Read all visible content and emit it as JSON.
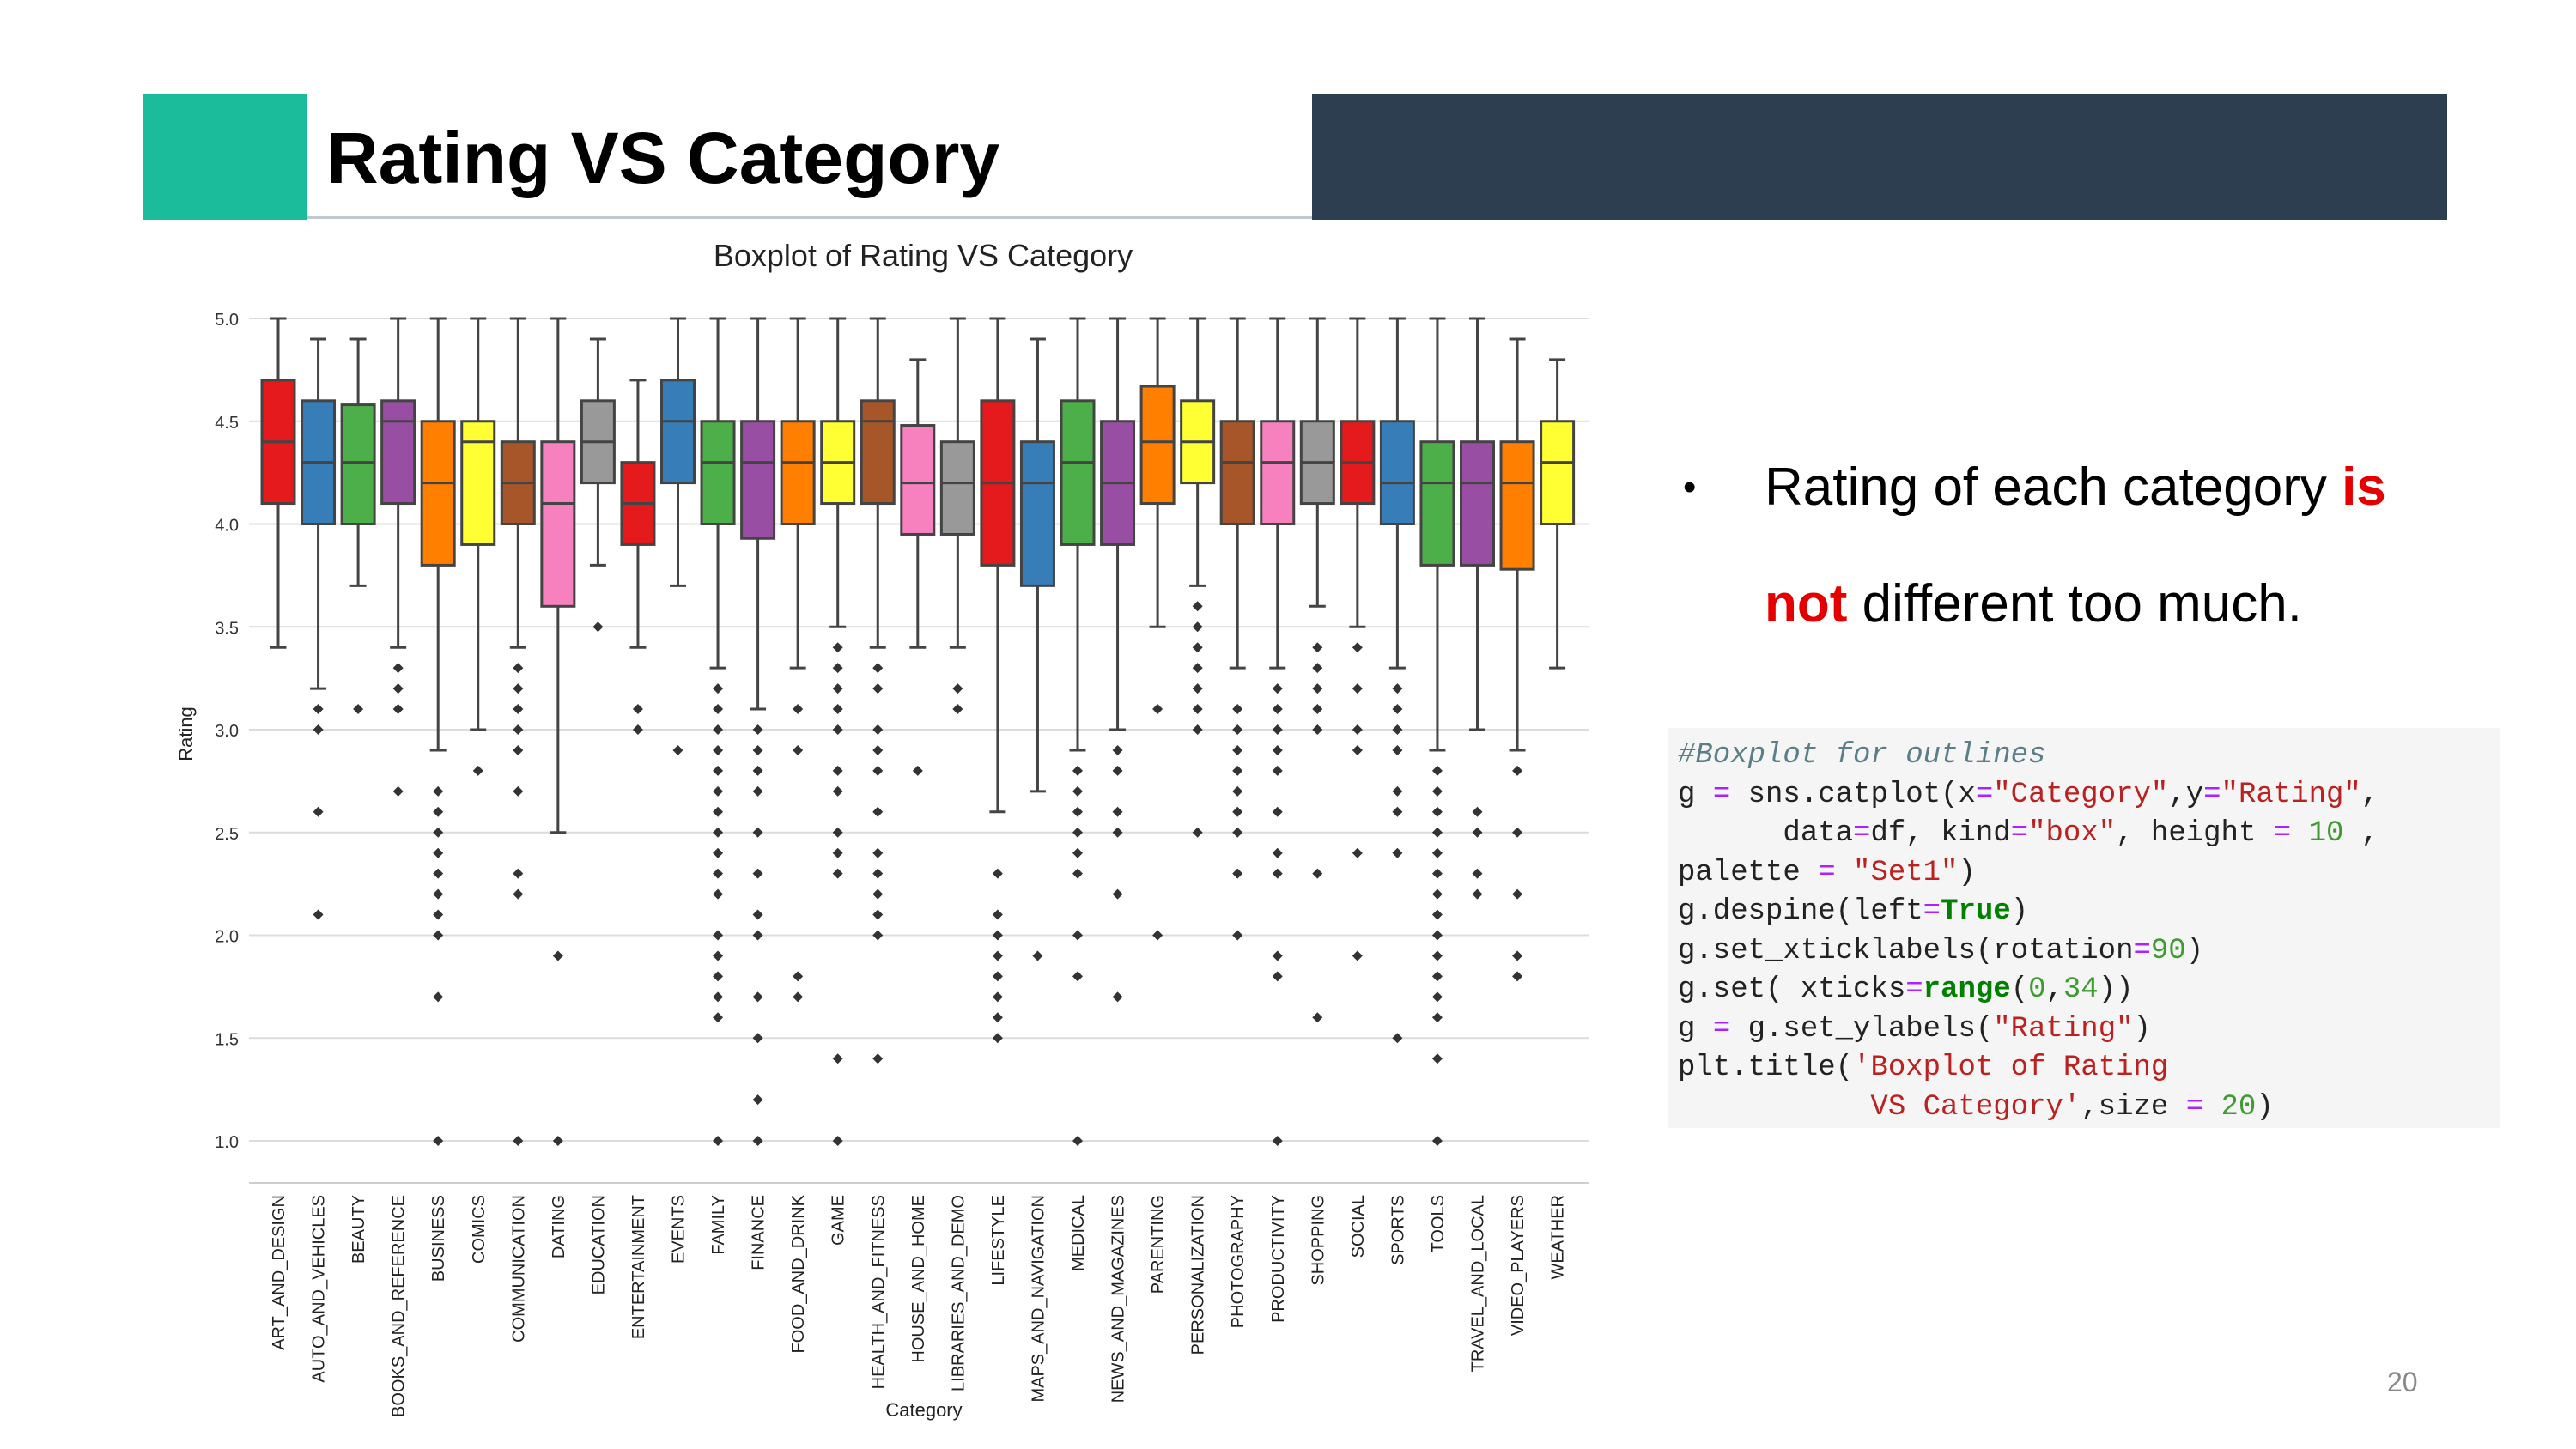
{
  "slide": {
    "title": "Rating VS Category",
    "page_number": "20",
    "accent_color": "#1abc9c",
    "bar_color": "#2d3e50"
  },
  "bullet": {
    "part1": "Rating of each category ",
    "hl1": "is",
    "hl2": "not",
    "part2": " different too much.",
    "highlight_color": "#e50000"
  },
  "code": {
    "lines": [
      [
        [
          "c-com",
          "#Boxplot for outlines"
        ]
      ],
      [
        [
          "",
          "g "
        ],
        [
          "c-op",
          "="
        ],
        [
          "",
          " sns.catplot(x"
        ],
        [
          "c-op",
          "="
        ],
        [
          "c-str",
          "\"Category\""
        ],
        [
          "",
          ",y"
        ],
        [
          "c-op",
          "="
        ],
        [
          "c-str",
          "\"Rating\""
        ],
        [
          "",
          ","
        ]
      ],
      [
        [
          "",
          "      data"
        ],
        [
          "c-op",
          "="
        ],
        [
          "",
          "df, kind"
        ],
        [
          "c-op",
          "="
        ],
        [
          "c-str",
          "\"box\""
        ],
        [
          "",
          ", height "
        ],
        [
          "c-op",
          "="
        ],
        [
          "c-num",
          " 10"
        ],
        [
          "",
          " ,"
        ]
      ],
      [
        [
          "",
          "palette "
        ],
        [
          "c-op",
          "="
        ],
        [
          "c-str",
          " \"Set1\""
        ],
        [
          "",
          ")"
        ]
      ],
      [
        [
          "",
          "g.despine(left"
        ],
        [
          "c-op",
          "="
        ],
        [
          "c-kw",
          "True"
        ],
        [
          "",
          ")"
        ]
      ],
      [
        [
          "",
          "g.set_xticklabels(rotation"
        ],
        [
          "c-op",
          "="
        ],
        [
          "c-num",
          "90"
        ],
        [
          "",
          ")"
        ]
      ],
      [
        [
          "",
          "g.set( xticks"
        ],
        [
          "c-op",
          "="
        ],
        [
          "c-kw",
          "range"
        ],
        [
          "",
          "("
        ],
        [
          "c-num",
          "0"
        ],
        [
          "",
          ","
        ],
        [
          "c-num",
          "34"
        ],
        [
          "",
          "))"
        ]
      ],
      [
        [
          "",
          "g "
        ],
        [
          "c-op",
          "="
        ],
        [
          "",
          " g.set_ylabels("
        ],
        [
          "c-str",
          "\"Rating\""
        ],
        [
          "",
          ")"
        ]
      ],
      [
        [
          "",
          "plt.title("
        ],
        [
          "c-str",
          "'Boxplot of Rating"
        ]
      ],
      [
        [
          "c-str",
          "           VS Category'"
        ],
        [
          "",
          ",size "
        ],
        [
          "c-op",
          "="
        ],
        [
          "c-num",
          " 20"
        ],
        [
          "",
          ")"
        ]
      ]
    ]
  },
  "chart_data": {
    "type": "box",
    "title": "Boxplot of Rating VS Category",
    "xlabel": "Category",
    "ylabel": "Rating",
    "ylim": [
      0.85,
      5.0
    ],
    "yticks": [
      "1.0",
      "1.5",
      "2.0",
      "2.5",
      "3.0",
      "3.5",
      "4.0",
      "4.5",
      "5.0"
    ],
    "grid": true,
    "palette": [
      "#e41a1c",
      "#377eb8",
      "#4daf4a",
      "#984ea3",
      "#ff7f00",
      "#ffff33",
      "#a65628",
      "#f781bf",
      "#999999"
    ],
    "categories": [
      "ART_AND_DESIGN",
      "AUTO_AND_VEHICLES",
      "BEAUTY",
      "BOOKS_AND_REFERENCE",
      "BUSINESS",
      "COMICS",
      "COMMUNICATION",
      "DATING",
      "EDUCATION",
      "ENTERTAINMENT",
      "EVENTS",
      "FAMILY",
      "FINANCE",
      "FOOD_AND_DRINK",
      "GAME",
      "HEALTH_AND_FITNESS",
      "HOUSE_AND_HOME",
      "LIBRARIES_AND_DEMO",
      "LIFESTYLE",
      "MAPS_AND_NAVIGATION",
      "MEDICAL",
      "NEWS_AND_MAGAZINES",
      "PARENTING",
      "PERSONALIZATION",
      "PHOTOGRAPHY",
      "PRODUCTIVITY",
      "SHOPPING",
      "SOCIAL",
      "SPORTS",
      "TOOLS",
      "TRAVEL_AND_LOCAL",
      "VIDEO_PLAYERS",
      "WEATHER"
    ],
    "boxes": [
      {
        "wl": 3.4,
        "q1": 4.1,
        "med": 4.4,
        "q3": 4.7,
        "wh": 5.0,
        "fliers": []
      },
      {
        "wl": 3.2,
        "q1": 4.0,
        "med": 4.3,
        "q3": 4.6,
        "wh": 4.9,
        "fliers": [
          3.1,
          3.0,
          2.6,
          2.1
        ]
      },
      {
        "wl": 3.7,
        "q1": 4.0,
        "med": 4.3,
        "q3": 4.58,
        "wh": 4.9,
        "fliers": [
          3.1
        ]
      },
      {
        "wl": 3.4,
        "q1": 4.1,
        "med": 4.5,
        "q3": 4.6,
        "wh": 5.0,
        "fliers": [
          3.3,
          3.2,
          3.1,
          2.7
        ]
      },
      {
        "wl": 2.9,
        "q1": 3.8,
        "med": 4.2,
        "q3": 4.5,
        "wh": 5.0,
        "fliers": [
          2.7,
          2.6,
          2.5,
          2.4,
          2.3,
          2.2,
          2.1,
          2.0,
          1.7,
          1.0
        ]
      },
      {
        "wl": 3.0,
        "q1": 3.9,
        "med": 4.4,
        "q3": 4.5,
        "wh": 5.0,
        "fliers": [
          2.8
        ]
      },
      {
        "wl": 3.4,
        "q1": 4.0,
        "med": 4.2,
        "q3": 4.4,
        "wh": 5.0,
        "fliers": [
          3.3,
          3.2,
          3.1,
          3.0,
          2.9,
          2.7,
          2.3,
          2.2,
          1.0
        ]
      },
      {
        "wl": 2.5,
        "q1": 3.6,
        "med": 4.1,
        "q3": 4.4,
        "wh": 5.0,
        "fliers": [
          1.9,
          1.0
        ]
      },
      {
        "wl": 3.8,
        "q1": 4.2,
        "med": 4.4,
        "q3": 4.6,
        "wh": 4.9,
        "fliers": [
          3.5
        ]
      },
      {
        "wl": 3.4,
        "q1": 3.9,
        "med": 4.1,
        "q3": 4.3,
        "wh": 4.7,
        "fliers": [
          3.1,
          3.0
        ]
      },
      {
        "wl": 3.7,
        "q1": 4.2,
        "med": 4.5,
        "q3": 4.7,
        "wh": 5.0,
        "fliers": [
          2.9
        ]
      },
      {
        "wl": 3.3,
        "q1": 4.0,
        "med": 4.3,
        "q3": 4.5,
        "wh": 5.0,
        "fliers": [
          3.2,
          3.1,
          3.0,
          2.9,
          2.8,
          2.7,
          2.6,
          2.5,
          2.4,
          2.3,
          2.2,
          2.0,
          1.9,
          1.8,
          1.7,
          1.6,
          1.0
        ]
      },
      {
        "wl": 3.1,
        "q1": 3.93,
        "med": 4.3,
        "q3": 4.5,
        "wh": 5.0,
        "fliers": [
          3.0,
          2.9,
          2.8,
          2.7,
          2.5,
          2.3,
          2.1,
          2.0,
          1.7,
          1.5,
          1.2,
          1.0
        ]
      },
      {
        "wl": 3.3,
        "q1": 4.0,
        "med": 4.3,
        "q3": 4.5,
        "wh": 5.0,
        "fliers": [
          3.1,
          2.9,
          1.8,
          1.7
        ]
      },
      {
        "wl": 3.5,
        "q1": 4.1,
        "med": 4.3,
        "q3": 4.5,
        "wh": 5.0,
        "fliers": [
          3.4,
          3.3,
          3.2,
          3.1,
          3.0,
          2.8,
          2.7,
          2.5,
          2.4,
          2.3,
          1.4,
          1.0
        ]
      },
      {
        "wl": 3.4,
        "q1": 4.1,
        "med": 4.5,
        "q3": 4.6,
        "wh": 5.0,
        "fliers": [
          3.3,
          3.2,
          3.0,
          2.9,
          2.8,
          2.6,
          2.4,
          2.3,
          2.2,
          2.1,
          2.0,
          1.4
        ]
      },
      {
        "wl": 3.4,
        "q1": 3.95,
        "med": 4.2,
        "q3": 4.48,
        "wh": 4.8,
        "fliers": [
          2.8
        ]
      },
      {
        "wl": 3.4,
        "q1": 3.95,
        "med": 4.2,
        "q3": 4.4,
        "wh": 5.0,
        "fliers": [
          3.2,
          3.1
        ]
      },
      {
        "wl": 2.6,
        "q1": 3.8,
        "med": 4.2,
        "q3": 4.6,
        "wh": 5.0,
        "fliers": [
          2.3,
          2.1,
          2.0,
          1.9,
          1.8,
          1.7,
          1.6,
          1.5
        ]
      },
      {
        "wl": 2.7,
        "q1": 3.7,
        "med": 4.2,
        "q3": 4.4,
        "wh": 4.9,
        "fliers": [
          1.9
        ]
      },
      {
        "wl": 2.9,
        "q1": 3.9,
        "med": 4.3,
        "q3": 4.6,
        "wh": 5.0,
        "fliers": [
          2.8,
          2.7,
          2.6,
          2.5,
          2.4,
          2.3,
          2.0,
          1.8,
          1.0
        ]
      },
      {
        "wl": 3.0,
        "q1": 3.9,
        "med": 4.2,
        "q3": 4.5,
        "wh": 5.0,
        "fliers": [
          2.9,
          2.8,
          2.6,
          2.5,
          2.2,
          1.7
        ]
      },
      {
        "wl": 3.5,
        "q1": 4.1,
        "med": 4.4,
        "q3": 4.67,
        "wh": 5.0,
        "fliers": [
          3.1,
          2.0
        ]
      },
      {
        "wl": 3.7,
        "q1": 4.2,
        "med": 4.4,
        "q3": 4.6,
        "wh": 5.0,
        "fliers": [
          3.6,
          3.5,
          3.4,
          3.3,
          3.2,
          3.1,
          3.0,
          2.5
        ]
      },
      {
        "wl": 3.3,
        "q1": 4.0,
        "med": 4.3,
        "q3": 4.5,
        "wh": 5.0,
        "fliers": [
          3.1,
          3.0,
          2.9,
          2.8,
          2.7,
          2.6,
          2.5,
          2.3,
          2.0
        ]
      },
      {
        "wl": 3.3,
        "q1": 4.0,
        "med": 4.3,
        "q3": 4.5,
        "wh": 5.0,
        "fliers": [
          3.2,
          3.1,
          3.0,
          2.9,
          2.8,
          2.6,
          2.4,
          2.3,
          1.9,
          1.8,
          1.0
        ]
      },
      {
        "wl": 3.6,
        "q1": 4.1,
        "med": 4.3,
        "q3": 4.5,
        "wh": 5.0,
        "fliers": [
          3.4,
          3.3,
          3.2,
          3.1,
          3.0,
          2.3,
          1.6
        ]
      },
      {
        "wl": 3.5,
        "q1": 4.1,
        "med": 4.3,
        "q3": 4.5,
        "wh": 5.0,
        "fliers": [
          3.4,
          3.2,
          3.0,
          2.9,
          2.4,
          1.9
        ]
      },
      {
        "wl": 3.3,
        "q1": 4.0,
        "med": 4.2,
        "q3": 4.5,
        "wh": 5.0,
        "fliers": [
          3.2,
          3.1,
          3.0,
          2.9,
          2.7,
          2.6,
          2.4,
          1.5
        ]
      },
      {
        "wl": 2.9,
        "q1": 3.8,
        "med": 4.2,
        "q3": 4.4,
        "wh": 5.0,
        "fliers": [
          2.8,
          2.7,
          2.6,
          2.5,
          2.4,
          2.3,
          2.2,
          2.1,
          2.0,
          1.9,
          1.8,
          1.7,
          1.6,
          1.4,
          1.0
        ]
      },
      {
        "wl": 3.0,
        "q1": 3.8,
        "med": 4.2,
        "q3": 4.4,
        "wh": 5.0,
        "fliers": [
          2.6,
          2.5,
          2.3,
          2.2
        ]
      },
      {
        "wl": 2.9,
        "q1": 3.78,
        "med": 4.2,
        "q3": 4.4,
        "wh": 4.9,
        "fliers": [
          2.8,
          2.5,
          2.2,
          1.9,
          1.8
        ]
      },
      {
        "wl": 3.3,
        "q1": 4.0,
        "med": 4.3,
        "q3": 4.5,
        "wh": 4.8,
        "fliers": []
      }
    ]
  }
}
